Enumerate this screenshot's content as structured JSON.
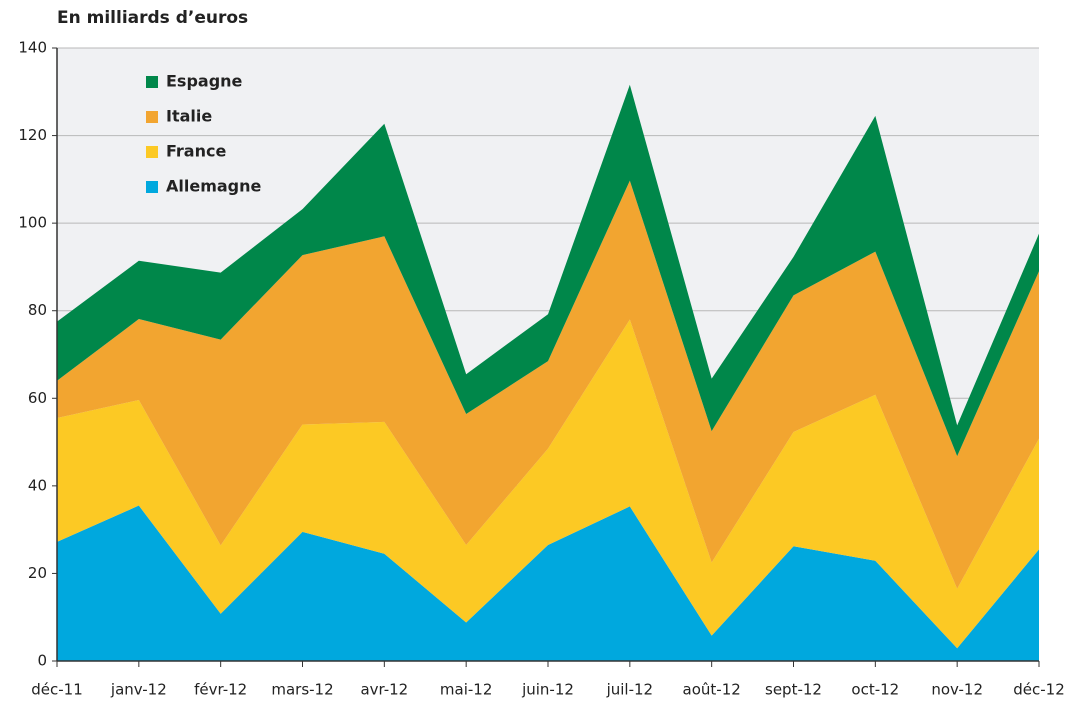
{
  "chart_data": {
    "type": "stacked_area",
    "title": "En milliards d’euros",
    "categories": [
      "déc-11",
      "janv-12",
      "févr-12",
      "mars-12",
      "avr-12",
      "mai-12",
      "juin-12",
      "juil-12",
      "août-12",
      "sept-12",
      "oct-12",
      "nov-12",
      "déc-12"
    ],
    "series": [
      {
        "name": "Allemagne",
        "color": "#00a8de",
        "values": [
          27.2,
          35.5,
          10.8,
          29.5,
          24.5,
          8.8,
          26.5,
          35.3,
          5.8,
          26.2,
          22.9,
          2.9,
          25.5
        ]
      },
      {
        "name": "France",
        "color": "#fcc924",
        "values": [
          28.3,
          24.1,
          15.6,
          24.5,
          30.1,
          17.7,
          22,
          42.7,
          16.7,
          26.1,
          37.9,
          13.6,
          25.3
        ]
      },
      {
        "name": "Italie",
        "color": "#f2a530",
        "values": [
          8.5,
          18.5,
          47,
          38.7,
          42.4,
          29.9,
          20,
          31.7,
          30,
          31.2,
          32.7,
          30.3,
          38.2
        ]
      },
      {
        "name": "Espagne",
        "color": "#00874a",
        "values": [
          13.5,
          13.3,
          15.3,
          10.5,
          25.7,
          9.1,
          10.7,
          21.9,
          12,
          8.8,
          31,
          7,
          8.6
        ]
      }
    ],
    "ylim": [
      0,
      140
    ],
    "yticks": [
      0,
      20,
      40,
      60,
      80,
      100,
      120,
      140
    ],
    "grid": true,
    "legend": "upper left"
  }
}
